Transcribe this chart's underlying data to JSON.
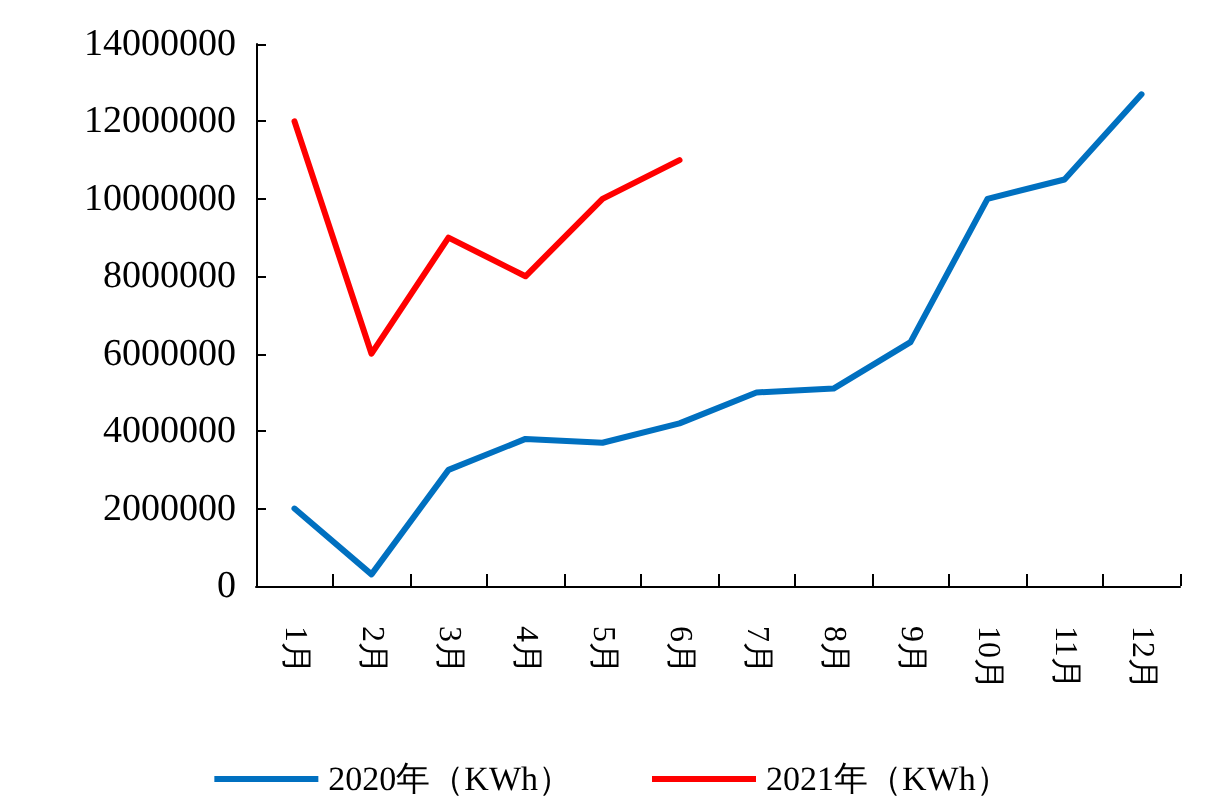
{
  "chart_data": {
    "type": "line",
    "categories": [
      "1月",
      "2月",
      "3月",
      "4月",
      "5月",
      "6月",
      "7月",
      "8月",
      "9月",
      "10月",
      "11月",
      "12月"
    ],
    "series": [
      {
        "name": "2020年（KWh）",
        "color": "#0070c0",
        "values": [
          2000000,
          300000,
          3000000,
          3800000,
          3700000,
          4200000,
          5000000,
          5100000,
          6300000,
          10000000,
          10500000,
          12700000
        ]
      },
      {
        "name": "2021年（KWh）",
        "color": "#ff0000",
        "values": [
          12000000,
          6000000,
          9000000,
          8000000,
          10000000,
          11000000,
          null,
          null,
          null,
          null,
          null,
          null
        ]
      }
    ],
    "ylim": [
      0,
      14000000
    ],
    "yticks": [
      0,
      2000000,
      4000000,
      6000000,
      8000000,
      10000000,
      12000000,
      14000000
    ],
    "grid": false,
    "legend": "bottom",
    "marker": "none",
    "line_style": "solid"
  }
}
